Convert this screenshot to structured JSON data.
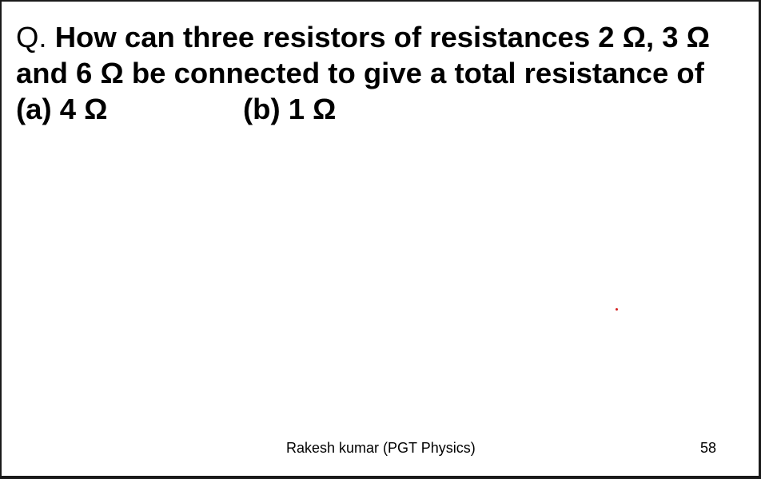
{
  "question": {
    "prefix": "Q.",
    "line1": "How can three resistors of resistances 2 Ω, 3 Ω",
    "line2": "and 6 Ω be connected to give a total resistance of",
    "option_a": "(a) 4 Ω",
    "option_b": "(b) 1 Ω"
  },
  "footer": {
    "author": "Rakesh kumar (PGT Physics)",
    "page_number": "58"
  },
  "colors": {
    "text": "#000000",
    "background": "#ffffff",
    "pointer_dot": "#d42020"
  }
}
